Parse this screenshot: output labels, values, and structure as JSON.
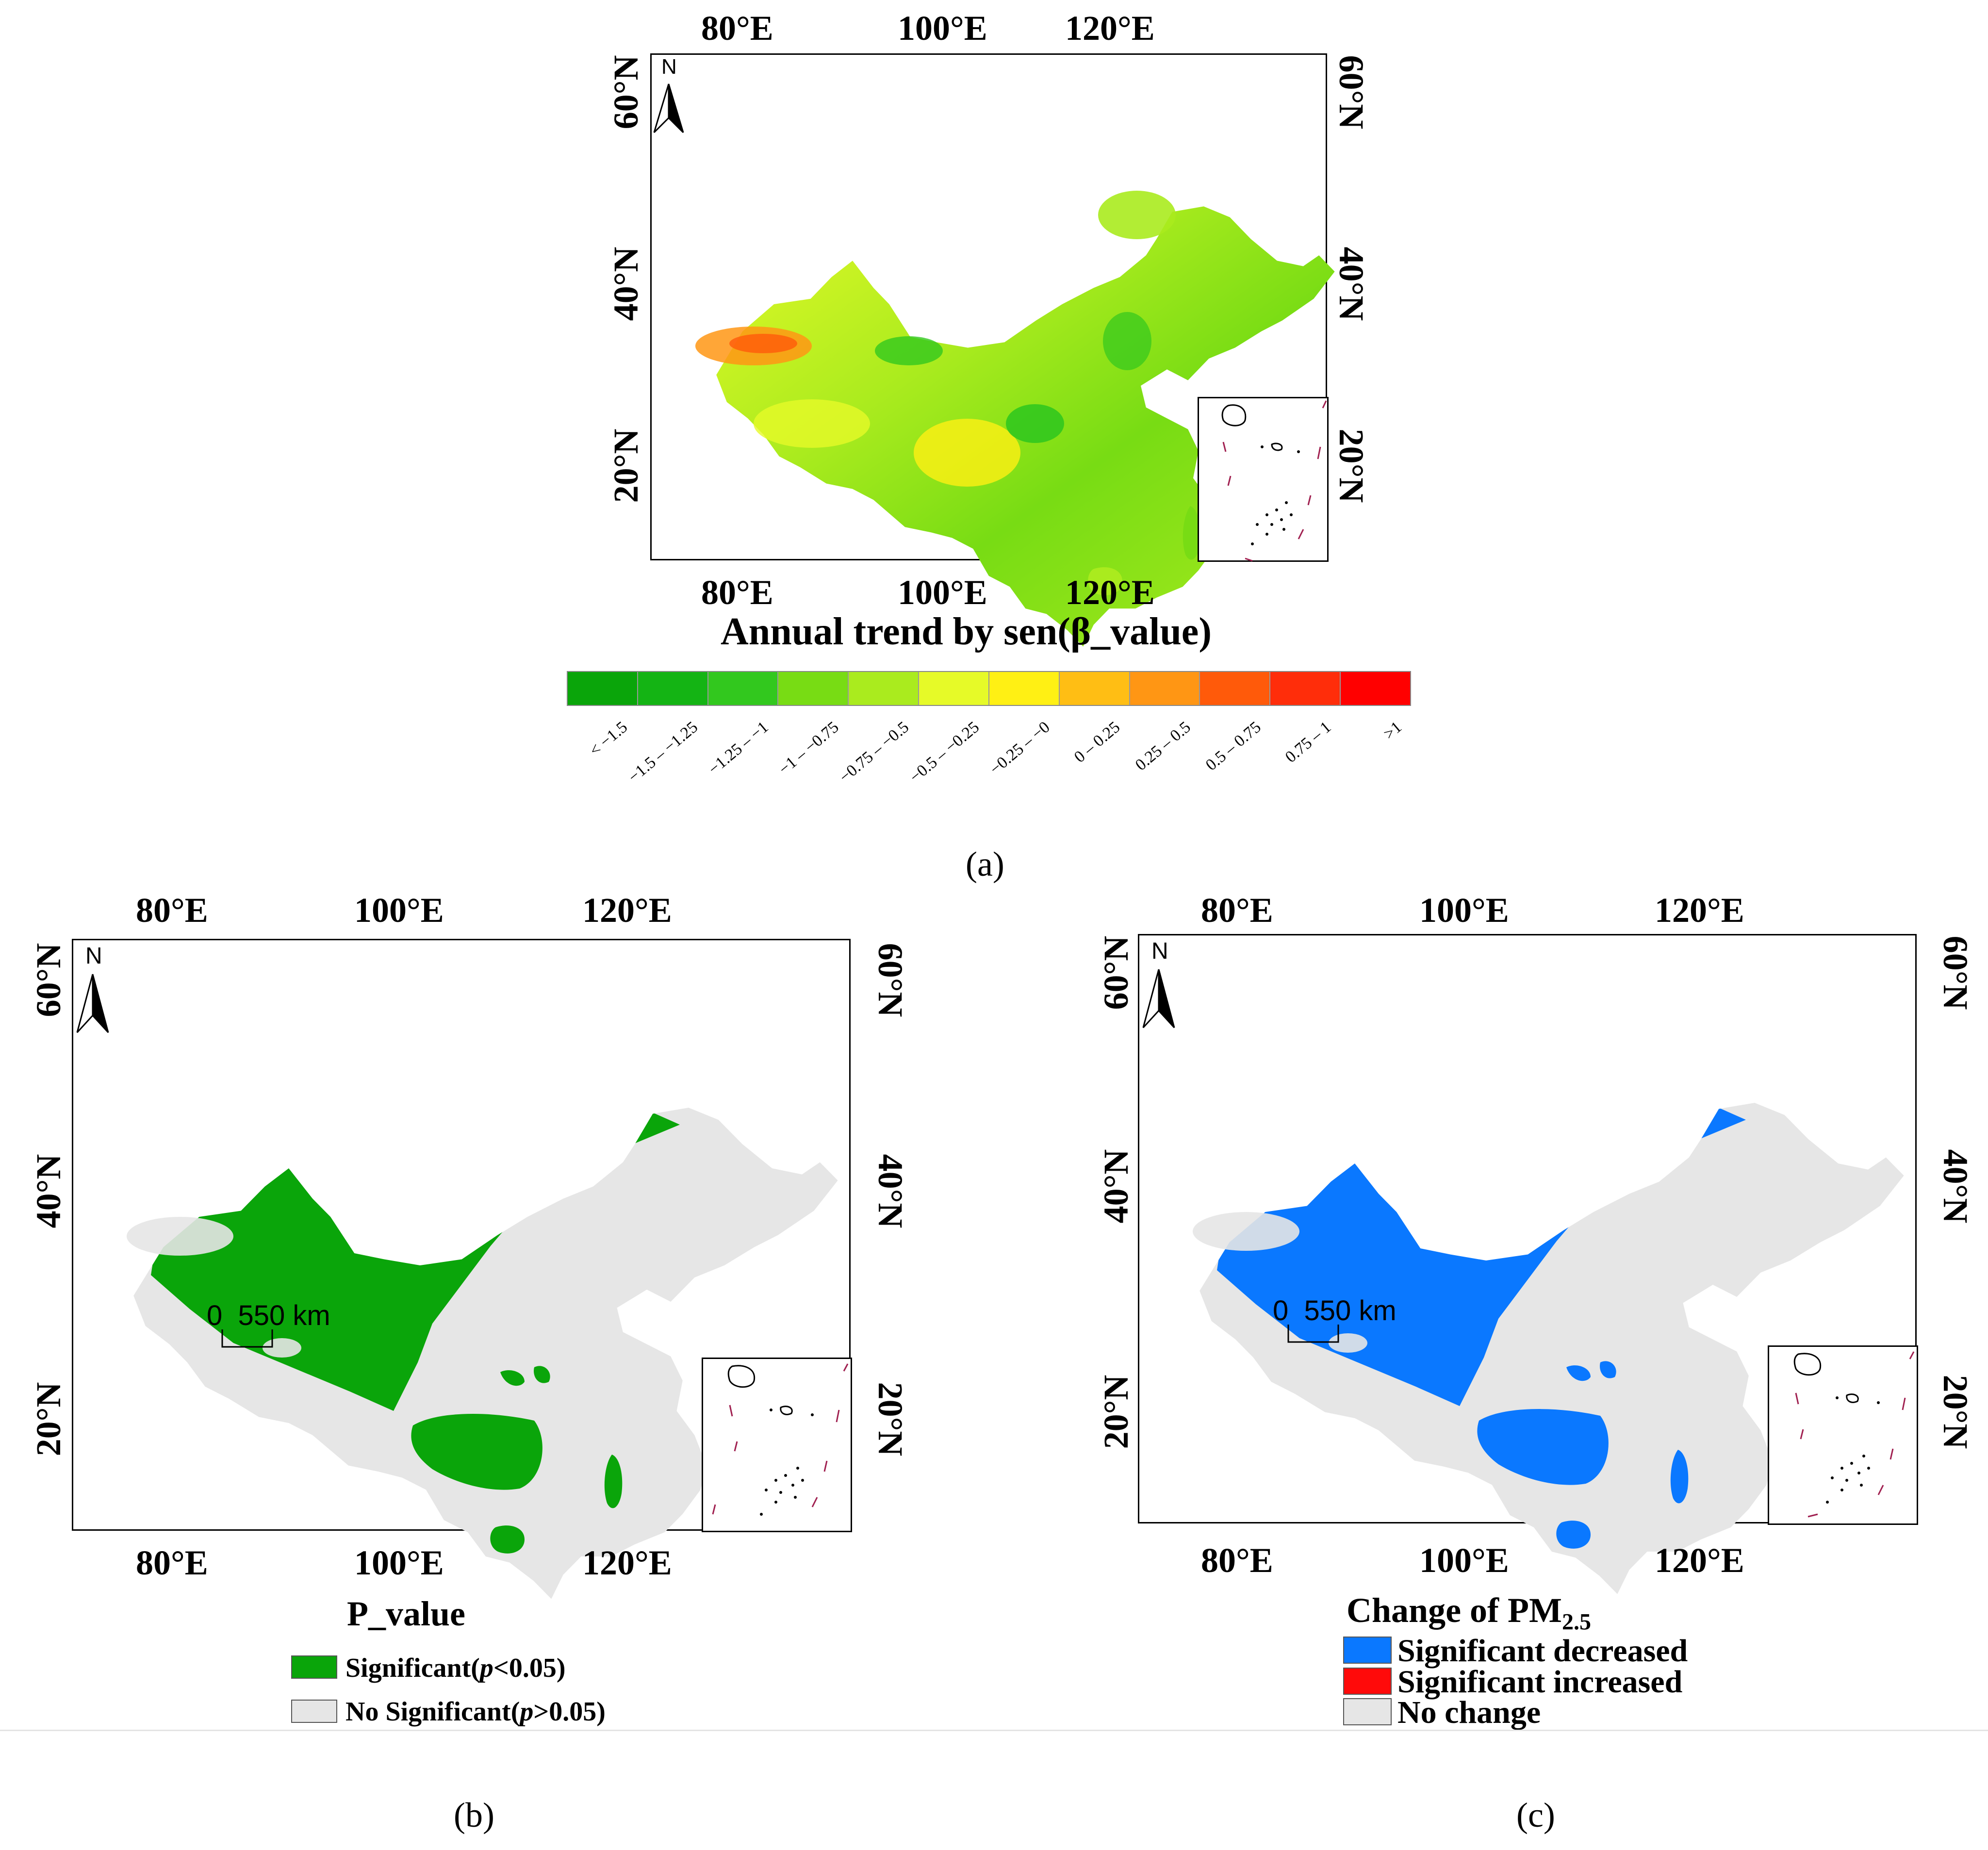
{
  "axes": {
    "lon_labels": [
      "80°E",
      "100°E",
      "120°E"
    ],
    "lat_labels": [
      "60°N",
      "40°N",
      "20°N"
    ]
  },
  "north_arrow_label": "N",
  "scale_bar": "0  550 km",
  "panel_a": {
    "caption": "(a)",
    "legend_title": "Annual trend by sen(β_value)",
    "legend_classes": [
      {
        "label": "< −1.5",
        "color": "#0aa50a"
      },
      {
        "label": "−1.5 – −1.25",
        "color": "#14b414"
      },
      {
        "label": "−1.25 – −1",
        "color": "#32c81e"
      },
      {
        "label": "−1 – −0.75",
        "color": "#78dc14"
      },
      {
        "label": "−0.75 – −0.5",
        "color": "#aaeb1e"
      },
      {
        "label": "−0.5 – −0.25",
        "color": "#e6fa28"
      },
      {
        "label": "−0.25 – −0",
        "color": "#fff014"
      },
      {
        "label": "0 – 0.25",
        "color": "#ffbe14"
      },
      {
        "label": "0.25 – 0.5",
        "color": "#ff9614"
      },
      {
        "label": "0.5 – 0.75",
        "color": "#ff5a0a"
      },
      {
        "label": "0.75 – 1",
        "color": "#ff2d0a"
      },
      {
        "label": ">1",
        "color": "#ff0000"
      }
    ]
  },
  "panel_b": {
    "caption": "(b)",
    "legend_title": "P_value",
    "legend_items": [
      {
        "label_a": "Significant(",
        "label_italic": "p",
        "label_b": "<0.05)",
        "color": "#0aa50a"
      },
      {
        "label_a": "No Significant(",
        "label_italic": "p",
        "label_b": ">0.05)",
        "color": "#e6e6e6"
      }
    ]
  },
  "panel_c": {
    "caption": "(c)",
    "legend_title": "Change of PM",
    "legend_title_sub": "2.5",
    "legend_items": [
      {
        "label": "Significant decreased",
        "color": "#0a78ff"
      },
      {
        "label": "Significant increased",
        "color": "#ff0a0a"
      },
      {
        "label": "No change",
        "color": "#e6e6e6"
      }
    ]
  }
}
